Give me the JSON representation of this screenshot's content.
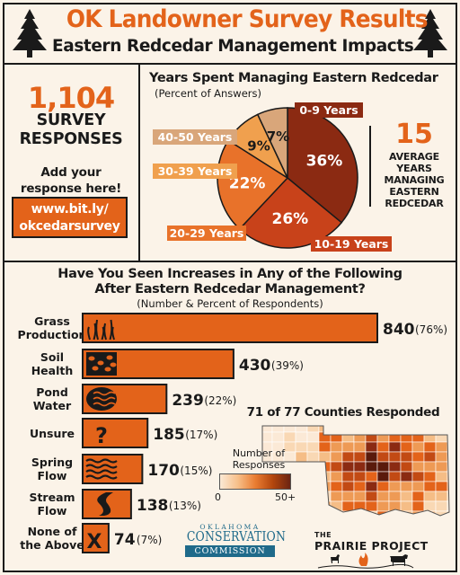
{
  "header": {
    "title": "OK Landowner Survey Results",
    "subtitle": "Eastern Redcedar Management Impacts"
  },
  "left_panel": {
    "responses_count": "1,104",
    "responses_label_1": "SURVEY",
    "responses_label_2": "RESPONSES",
    "add_label_1": "Add your",
    "add_label_2": "response here!",
    "url_1": "www.bit.ly/",
    "url_2": "okcedarsurvey"
  },
  "average_panel": {
    "value": "15",
    "label_1": "AVERAGE",
    "label_2": "YEARS",
    "label_3": "MANAGING",
    "label_4": "EASTERN",
    "label_5": "REDCEDAR"
  },
  "map": {
    "title": "71 of 77 Counties Responded",
    "legend_title_1": "Number of",
    "legend_title_2": "Responses",
    "legend_min": "0",
    "legend_max": "50+"
  },
  "logos": {
    "occ_top": "OKLAHOMA",
    "occ_mid": "CONSERVATION",
    "occ_bot": "COMMISSION",
    "pp_the": "THE",
    "pp_name": "PRAIRIE PROJECT"
  },
  "colors": {
    "accent_orange": "#e3631a",
    "dark_brown": "#8b2a12",
    "tan": "#d9a67a",
    "text_dark": "#1a1a1a",
    "background": "#fbf3e8"
  },
  "chart_data": [
    {
      "type": "pie",
      "title": "Years Spent Managing Eastern Redcedar",
      "subtitle": "(Percent of Answers)",
      "slices": [
        {
          "label": "0-9 Years",
          "value": 36,
          "display": "36%",
          "color": "#8b2a12"
        },
        {
          "label": "10-19 Years",
          "value": 26,
          "display": "26%",
          "color": "#c8421a"
        },
        {
          "label": "20-29 Years",
          "value": 22,
          "display": "22%",
          "color": "#e8722a"
        },
        {
          "label": "30-39 Years",
          "value": 9,
          "display": "9%",
          "color": "#f0a04e"
        },
        {
          "label": "40-50 Years",
          "value": 7,
          "display": "7%",
          "color": "#d9a67a"
        }
      ]
    },
    {
      "type": "bar",
      "title": "Have You Seen Increases in Any of the Following After Eastern Redcedar Management?",
      "title_line_1": "Have You Seen Increases in Any of the Following",
      "title_line_2": "After Eastern Redcedar Management?",
      "subtitle": "(Number & Percent of Respondents)",
      "categories": [
        "Grass Production",
        "Soil Health",
        "Pond Water",
        "Unsure",
        "Spring Flow",
        "Stream Flow",
        "None of the Above"
      ],
      "category_lines": [
        [
          "Grass",
          "Production"
        ],
        [
          "Soil",
          "Health"
        ],
        [
          "Pond",
          "Water"
        ],
        [
          "Unsure"
        ],
        [
          "Spring",
          "Flow"
        ],
        [
          "Stream",
          "Flow"
        ],
        [
          "None of",
          "the Above"
        ]
      ],
      "icons": [
        "grass-icon",
        "soil-icon",
        "pond-water-icon",
        "question-icon",
        "spring-flow-icon",
        "stream-flow-icon",
        "none-x-icon"
      ],
      "values": [
        840,
        430,
        239,
        185,
        170,
        138,
        74
      ],
      "percents": [
        "(76%)",
        "(39%)",
        "(22%)",
        "(17%)",
        "(15%)",
        "(13%)",
        "(7%)"
      ],
      "bar_color": "#e3631a"
    }
  ]
}
